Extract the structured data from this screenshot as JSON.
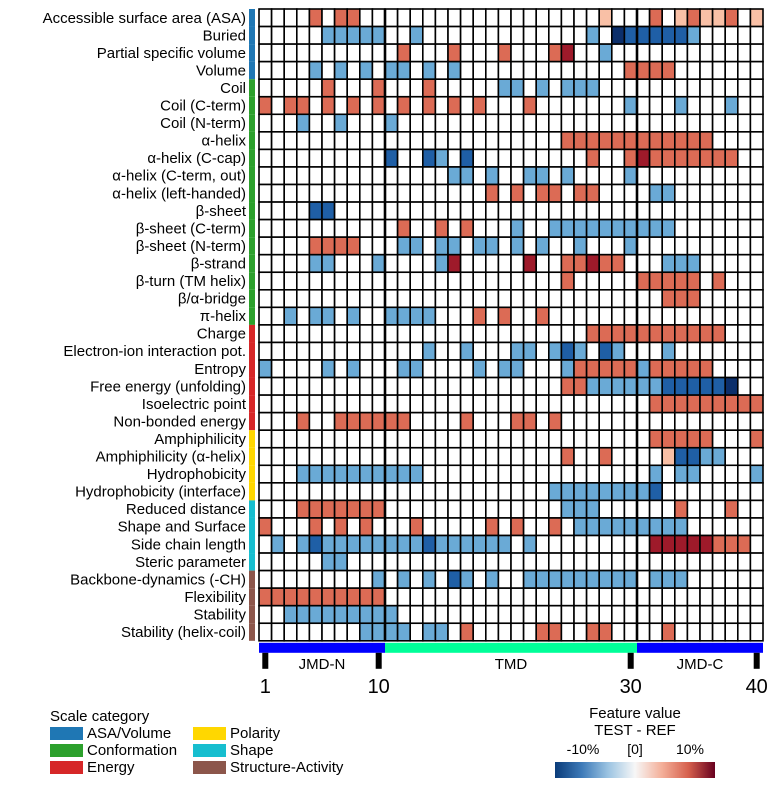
{
  "chart_data": {
    "type": "heatmap",
    "x_axis": {
      "tick_labels": [
        "1",
        "10",
        "30",
        "40"
      ],
      "tick_positions": [
        1,
        10,
        30,
        40
      ],
      "range": [
        1,
        40
      ]
    },
    "regions": [
      {
        "name": "JMD-N",
        "start": 1,
        "end": 10,
        "color": "#0000ff"
      },
      {
        "name": "TMD",
        "start": 11,
        "end": 30,
        "color": "#00ff99"
      },
      {
        "name": "JMD-C",
        "start": 31,
        "end": 40,
        "color": "#0000ff"
      }
    ],
    "rows": [
      {
        "label": "Accessible surface area (ASA)",
        "category": "ASA/Volume",
        "values": "0000303300000000000000000002000302322302"
      },
      {
        "label": "Buried",
        "category": "ASA/Volume",
        "values": "00000-1-1-1-1-100-10000000000000-10-3-2-2-2-2-2-10000"
      },
      {
        "label": "Partial specific volume",
        "category": "ASA/Volume",
        "values": "000000000003000300030003400-10000000000"
      },
      {
        "label": "Volume",
        "category": "ASA/Volume",
        "values": "0000-10-10-10-1-10-10-100000000000003333000"
      },
      {
        "label": "Coil",
        "category": "Conformation",
        "values": "0000030003000300000-1-10-10-1-1-1000000000"
      },
      {
        "label": "Coil (C-term)",
        "category": "Conformation",
        "values": "30330303030303030300030000000-1000-1000-10"
      },
      {
        "label": "Coil (N-term)",
        "category": "Conformation",
        "values": "000-100-1000-1000000000000000000000000"
      },
      {
        "label": "α-helix",
        "category": "Conformation",
        "values": "00000000000000000000000033333333333300000"
      },
      {
        "label": "α-helix (C-cap)",
        "category": "Conformation",
        "values": "0000000000-200-2-10-2000000000300343333333"
      },
      {
        "label": "α-helix (C-term, out)",
        "category": "Conformation",
        "values": "000000000000000-1-10-100-1-10-10000-1000000"
      },
      {
        "label": "α-helix (left-handed)",
        "category": "Conformation",
        "values": "0000000000000000003030330330000-1-1000000"
      },
      {
        "label": "β-sheet",
        "category": "Conformation",
        "values": "0000-2-20000000000000000000000000000000"
      },
      {
        "label": "β-sheet (C-term)",
        "category": "Conformation",
        "values": "00000000000300303000-100-1-1-1-1-1-1-1-1-1-1000000"
      },
      {
        "label": "β-sheet (N-term)",
        "category": "Conformation",
        "values": "00003333000-1-10-1-10-1-10-10-100-1000-10000000"
      },
      {
        "label": "β-strand",
        "category": "Conformation",
        "values": "0000-1-1000-10000-140000040033433000-1-1-1000000"
      },
      {
        "label": "β-turn (TM helix)",
        "category": "Conformation",
        "values": "000000000000000000000000300000333330300"
      },
      {
        "label": "β/α-bridge",
        "category": "Conformation",
        "values": "0000000000000000000000000000000033300000"
      },
      {
        "label": "π-helix",
        "category": "Conformation",
        "values": "00-10-1-10-100-1-1-1-10003030030000000000000"
      },
      {
        "label": "Charge",
        "category": "Energy",
        "values": "000000000000000000000000003333333333300000"
      },
      {
        "label": "Electron-ion interaction pot.",
        "category": "Energy",
        "values": "0000000000000-100-1000-1-10-1-2-10-2-1000-100000000"
      },
      {
        "label": "Entropy",
        "category": "Energy",
        "values": "-10000-10-1000-1-10000-10-1-1000-133333-133333000"
      },
      {
        "label": "Free energy (unfolding)",
        "category": "Energy",
        "values": "00000000000000000000000033-1-1-1-1-1-1-2-2-2-2-2-300"
      },
      {
        "label": "Isoelectric point",
        "category": "Energy",
        "values": "0000000000000000000000000000000333333333"
      },
      {
        "label": "Non-bonded energy",
        "category": "Energy",
        "values": "0003003333330000300033030000000000000000"
      },
      {
        "label": "Amphiphilicity",
        "category": "Polarity",
        "values": "0000000000000000000000000000000333330003"
      },
      {
        "label": "Amphiphilicity (α-helix)",
        "category": "Polarity",
        "values": "000000000000000000000000300300002-2-2-1-1000"
      },
      {
        "label": "Hydrophobicity",
        "category": "Polarity",
        "values": "000-1-1-1-1-1-1-1-1-1-1000000000000000000-10-1-10000-1000"
      },
      {
        "label": "Hydrophobicity (interface)",
        "category": "Polarity",
        "values": "00000000000000000000000-1-1-1-1-1-1-1-1-20000000"
      },
      {
        "label": "Reduced distance",
        "category": "Shape",
        "values": "000333333300000000000000-1-1-1000000300030000"
      },
      {
        "label": "Shape and Surface",
        "category": "Shape",
        "values": "3000303030003000003030030-1-1-1-1-1-1-1-1-100000"
      },
      {
        "label": "Side chain length",
        "category": "Shape",
        "values": "0-10-1-2-1-1-1-1-1-1-1-1-2-1-1-1-1-1-10-100000000044444333000"
      },
      {
        "label": "Steric parameter",
        "category": "Shape",
        "values": "00000-1-100000000000000000000000000000000"
      },
      {
        "label": "Backbone-dynamics (-CH)",
        "category": "Structure-Activity",
        "values": "000000000-10-10-10-2-10-100-1-1-1-1-1-1-1-1-10-1-1-1000000"
      },
      {
        "label": "Flexibility",
        "category": "Structure-Activity",
        "values": "3333333333000000000000000000000000000000"
      },
      {
        "label": "Stability",
        "category": "Structure-Activity",
        "values": "00-1-1-1-1-1-1-1-1-1000000000000000000000000000000"
      },
      {
        "label": "Stability (helix-coil)",
        "category": "Structure-Activity",
        "values": "00000000-1-1-1-10-1-10300000330033000030000000000"
      }
    ]
  },
  "category_legend": {
    "title": "Scale category",
    "items": [
      {
        "name": "ASA/Volume",
        "color": "#1f77b4"
      },
      {
        "name": "Conformation",
        "color": "#2ca02c"
      },
      {
        "name": "Energy",
        "color": "#d62728"
      },
      {
        "name": "Polarity",
        "color": "#ffd700"
      },
      {
        "name": "Shape",
        "color": "#17becf"
      },
      {
        "name": "Structure-Activity",
        "color": "#8c564b"
      }
    ]
  },
  "feature_legend": {
    "title": "Feature value",
    "subtitle": "TEST - REF",
    "ticks": [
      "-10%",
      "[0]",
      "10%"
    ]
  }
}
